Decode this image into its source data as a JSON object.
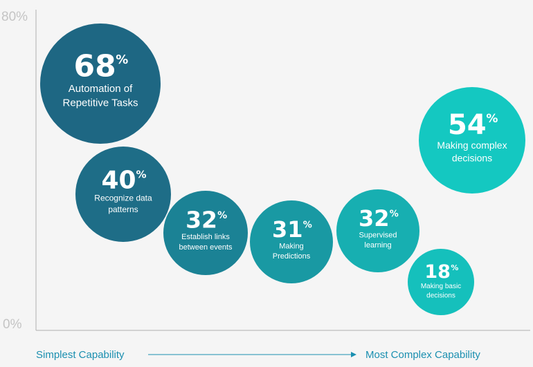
{
  "chart_data": {
    "type": "bubble",
    "ylim": [
      0,
      80
    ],
    "y_ticks": [
      "80%",
      "0%"
    ],
    "x_axis": {
      "start_label": "Simplest Capability",
      "end_label": "Most Complex Capability"
    },
    "colors": {
      "accent": "#1a8fb0",
      "gradient_start": "#1f5f7e",
      "gradient_end": "#14cbc3"
    },
    "points": [
      {
        "value": 68,
        "pct": "%",
        "label": [
          "Automation of",
          "Repetitive Tasks"
        ]
      },
      {
        "value": 40,
        "pct": "%",
        "label": [
          "Recognize data",
          "patterns"
        ]
      },
      {
        "value": 32,
        "pct": "%",
        "label": [
          "Establish links",
          "between events"
        ]
      },
      {
        "value": 31,
        "pct": "%",
        "label": [
          "Making",
          "Predictions"
        ]
      },
      {
        "value": 32,
        "pct": "%",
        "label": [
          "Supervised",
          "learning"
        ]
      },
      {
        "value": 54,
        "pct": "%",
        "label": [
          "Making complex",
          "decisions"
        ]
      },
      {
        "value": 18,
        "pct": "%",
        "label": [
          "Making basic",
          "decisions"
        ]
      }
    ]
  }
}
